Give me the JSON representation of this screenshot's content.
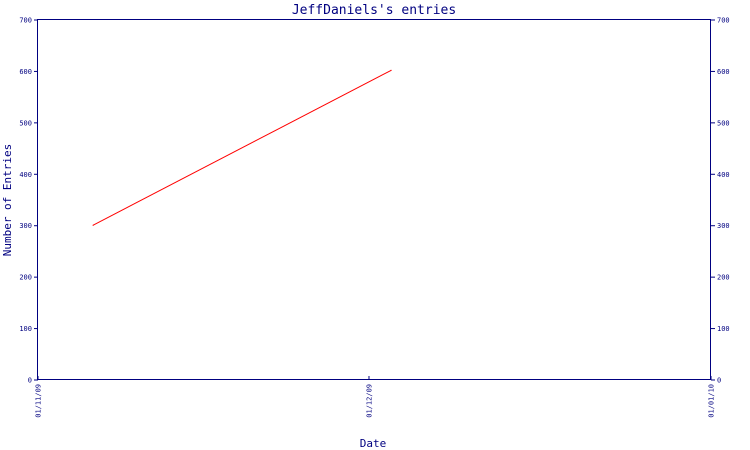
{
  "chart_data": {
    "type": "line",
    "title": "JeffDaniels's entries",
    "xlabel": "Date",
    "ylabel": "Number of Entries",
    "ylim": [
      0,
      700
    ],
    "y_ticks": [
      0,
      100,
      200,
      300,
      400,
      500,
      600,
      700
    ],
    "x_ticks": [
      "01/11/09",
      "01/12/09",
      "01/01/10"
    ],
    "x_tick_dates": [
      "2009-11-01",
      "2009-12-01",
      "2010-01-01"
    ],
    "xlim": [
      "2009-11-01",
      "2010-01-01"
    ],
    "grid": false,
    "right_axis": true,
    "series": [
      {
        "color": "#ff0000",
        "points": [
          {
            "x": "2009-11-06",
            "y": 301
          },
          {
            "x": "2009-12-03",
            "y": 602
          }
        ]
      }
    ]
  },
  "colors": {
    "axis": "#000080",
    "line": "#ff0000",
    "background": "#ffffff"
  }
}
